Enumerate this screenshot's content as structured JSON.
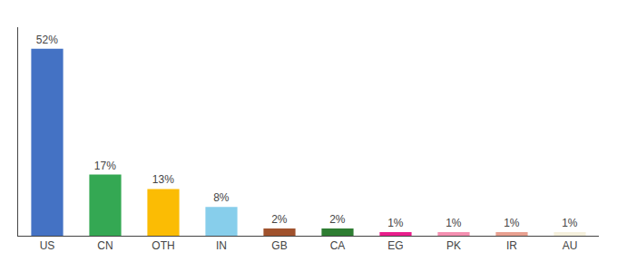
{
  "chart_data": {
    "type": "bar",
    "categories": [
      "US",
      "CN",
      "OTH",
      "IN",
      "GB",
      "CA",
      "EG",
      "PK",
      "IR",
      "AU"
    ],
    "values": [
      52,
      17,
      13,
      8,
      2,
      2,
      1,
      1,
      1,
      1
    ],
    "value_labels": [
      "52%",
      "17%",
      "13%",
      "8%",
      "2%",
      "2%",
      "1%",
      "1%",
      "1%",
      "1%"
    ],
    "colors": [
      "#4472C4",
      "#34A853",
      "#FBBC04",
      "#87CEEB",
      "#A0522D",
      "#2E7D32",
      "#E91E8C",
      "#F48FB1",
      "#E8A090",
      "#F5F0DC"
    ],
    "ylim": [
      0,
      58
    ],
    "grid": false,
    "data_labels": true,
    "tick_labels": "x"
  }
}
